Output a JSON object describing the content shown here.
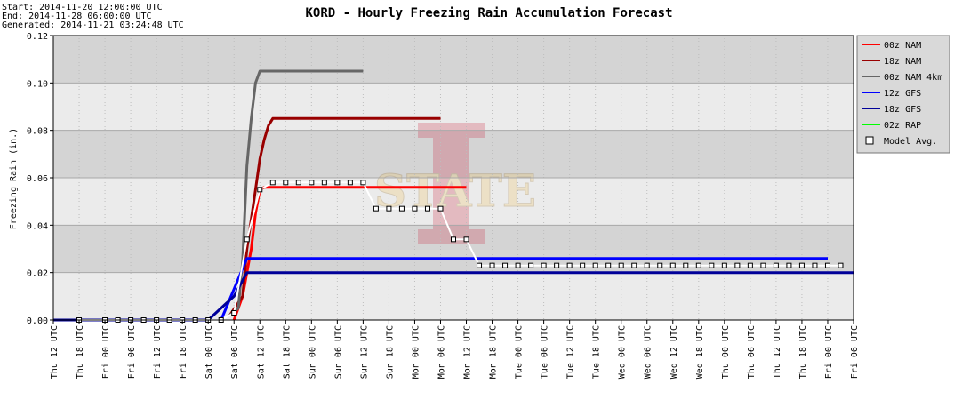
{
  "header": {
    "start": "Start: 2014-11-20 12:00:00 UTC",
    "end": "End: 2014-11-28 06:00:00 UTC",
    "generated": "Generated: 2014-11-21 03:24:48 UTC"
  },
  "chart_data": {
    "type": "line",
    "title": "KORD - Hourly Freezing Rain Accumulation Forecast",
    "ylabel": "Freezing Rain (in.)",
    "xlabel": "",
    "ylim": [
      0,
      0.12
    ],
    "y_ticks": [
      "0.00",
      "0.02",
      "0.04",
      "0.06",
      "0.08",
      "0.10",
      "0.12"
    ],
    "x_range": [
      "2014-11-20 12:00",
      "2014-11-28 06:00"
    ],
    "x_ticks": [
      "Thu 12 UTC",
      "Thu 18 UTC",
      "Fri 00 UTC",
      "Fri 06 UTC",
      "Fri 12 UTC",
      "Fri 18 UTC",
      "Sat 00 UTC",
      "Sat 06 UTC",
      "Sat 12 UTC",
      "Sat 18 UTC",
      "Sun 00 UTC",
      "Sun 06 UTC",
      "Sun 12 UTC",
      "Sun 18 UTC",
      "Mon 00 UTC",
      "Mon 06 UTC",
      "Mon 12 UTC",
      "Mon 18 UTC",
      "Tue 00 UTC",
      "Tue 06 UTC",
      "Tue 12 UTC",
      "Tue 18 UTC",
      "Wed 00 UTC",
      "Wed 06 UTC",
      "Wed 12 UTC",
      "Wed 18 UTC",
      "Thu 00 UTC",
      "Thu 06 UTC",
      "Thu 12 UTC",
      "Thu 18 UTC",
      "Fri 00 UTC",
      "Fri 06 UTC"
    ],
    "grid": true,
    "legend_position": "right",
    "series": [
      {
        "name": "00z NAM",
        "color": "#ff0000",
        "points": [
          [
            "2014-11-22 06:00",
            0.0
          ],
          [
            "2014-11-22 08:00",
            0.01
          ],
          [
            "2014-11-22 09:00",
            0.02
          ],
          [
            "2014-11-22 10:00",
            0.03
          ],
          [
            "2014-11-22 11:00",
            0.045
          ],
          [
            "2014-11-22 12:00",
            0.055
          ],
          [
            "2014-11-22 13:00",
            0.056
          ],
          [
            "2014-11-24 12:00",
            0.056
          ]
        ]
      },
      {
        "name": "18z NAM",
        "color": "#990000",
        "points": [
          [
            "2014-11-22 05:00",
            0.002
          ],
          [
            "2014-11-22 08:00",
            0.01
          ],
          [
            "2014-11-22 09:00",
            0.03
          ],
          [
            "2014-11-22 11:00",
            0.055
          ],
          [
            "2014-11-22 12:00",
            0.068
          ],
          [
            "2014-11-22 13:00",
            0.076
          ],
          [
            "2014-11-22 14:00",
            0.082
          ],
          [
            "2014-11-22 15:00",
            0.085
          ],
          [
            "2014-11-24 06:00",
            0.085
          ]
        ]
      },
      {
        "name": "00z NAM 4km",
        "color": "#666666",
        "points": [
          [
            "2014-11-22 05:00",
            0.002
          ],
          [
            "2014-11-22 07:00",
            0.005
          ],
          [
            "2014-11-22 08:00",
            0.025
          ],
          [
            "2014-11-22 09:00",
            0.065
          ],
          [
            "2014-11-22 10:00",
            0.085
          ],
          [
            "2014-11-22 11:00",
            0.1
          ],
          [
            "2014-11-22 12:00",
            0.105
          ],
          [
            "2014-11-23 12:00",
            0.105
          ]
        ]
      },
      {
        "name": "12z GFS",
        "color": "#0000ff",
        "points": [
          [
            "2014-11-22 03:00",
            0.0
          ],
          [
            "2014-11-22 06:00",
            0.013
          ],
          [
            "2014-11-22 09:00",
            0.026
          ],
          [
            "2014-11-28 00:00",
            0.026
          ]
        ]
      },
      {
        "name": "18z GFS",
        "color": "#000099",
        "points": [
          [
            "2014-11-20 12:00",
            0.0
          ],
          [
            "2014-11-21 00:00",
            0.0
          ],
          [
            "2014-11-22 00:00",
            0.0
          ],
          [
            "2014-11-22 06:00",
            0.01
          ],
          [
            "2014-11-22 09:00",
            0.02
          ],
          [
            "2014-11-28 06:00",
            0.02
          ]
        ]
      },
      {
        "name": "02z RAP",
        "color": "#00ff00",
        "points": []
      }
    ],
    "model_avg": {
      "name": "Model Avg.",
      "line_color": "#ffffff",
      "points": [
        [
          "2014-11-20 18:00",
          0.0
        ],
        [
          "2014-11-21 00:00",
          0.0
        ],
        [
          "2014-11-21 03:00",
          0.0
        ],
        [
          "2014-11-21 06:00",
          0.0
        ],
        [
          "2014-11-21 09:00",
          0.0
        ],
        [
          "2014-11-21 12:00",
          0.0
        ],
        [
          "2014-11-21 15:00",
          0.0
        ],
        [
          "2014-11-21 18:00",
          0.0
        ],
        [
          "2014-11-21 21:00",
          0.0
        ],
        [
          "2014-11-22 00:00",
          0.0
        ],
        [
          "2014-11-22 03:00",
          0.0
        ],
        [
          "2014-11-22 06:00",
          0.003
        ],
        [
          "2014-11-22 09:00",
          0.034
        ],
        [
          "2014-11-22 12:00",
          0.055
        ],
        [
          "2014-11-22 15:00",
          0.058
        ],
        [
          "2014-11-22 18:00",
          0.058
        ],
        [
          "2014-11-22 21:00",
          0.058
        ],
        [
          "2014-11-23 00:00",
          0.058
        ],
        [
          "2014-11-23 03:00",
          0.058
        ],
        [
          "2014-11-23 06:00",
          0.058
        ],
        [
          "2014-11-23 09:00",
          0.058
        ],
        [
          "2014-11-23 12:00",
          0.058
        ],
        [
          "2014-11-23 15:00",
          0.047
        ],
        [
          "2014-11-23 18:00",
          0.047
        ],
        [
          "2014-11-23 21:00",
          0.047
        ],
        [
          "2014-11-24 00:00",
          0.047
        ],
        [
          "2014-11-24 03:00",
          0.047
        ],
        [
          "2014-11-24 06:00",
          0.047
        ],
        [
          "2014-11-24 09:00",
          0.034
        ],
        [
          "2014-11-24 12:00",
          0.034
        ],
        [
          "2014-11-24 15:00",
          0.023
        ],
        [
          "2014-11-24 18:00",
          0.023
        ],
        [
          "2014-11-24 21:00",
          0.023
        ],
        [
          "2014-11-25 00:00",
          0.023
        ],
        [
          "2014-11-25 03:00",
          0.023
        ],
        [
          "2014-11-25 06:00",
          0.023
        ],
        [
          "2014-11-25 09:00",
          0.023
        ],
        [
          "2014-11-25 12:00",
          0.023
        ],
        [
          "2014-11-25 15:00",
          0.023
        ],
        [
          "2014-11-25 18:00",
          0.023
        ],
        [
          "2014-11-25 21:00",
          0.023
        ],
        [
          "2014-11-26 00:00",
          0.023
        ],
        [
          "2014-11-26 03:00",
          0.023
        ],
        [
          "2014-11-26 06:00",
          0.023
        ],
        [
          "2014-11-26 09:00",
          0.023
        ],
        [
          "2014-11-26 12:00",
          0.023
        ],
        [
          "2014-11-26 15:00",
          0.023
        ],
        [
          "2014-11-26 18:00",
          0.023
        ],
        [
          "2014-11-26 21:00",
          0.023
        ],
        [
          "2014-11-27 00:00",
          0.023
        ],
        [
          "2014-11-27 03:00",
          0.023
        ],
        [
          "2014-11-27 06:00",
          0.023
        ],
        [
          "2014-11-27 09:00",
          0.023
        ],
        [
          "2014-11-27 12:00",
          0.023
        ],
        [
          "2014-11-27 15:00",
          0.023
        ],
        [
          "2014-11-27 18:00",
          0.023
        ],
        [
          "2014-11-27 21:00",
          0.023
        ],
        [
          "2014-11-28 00:00",
          0.023
        ],
        [
          "2014-11-28 03:00",
          0.023
        ]
      ]
    },
    "watermark": "STATE"
  }
}
